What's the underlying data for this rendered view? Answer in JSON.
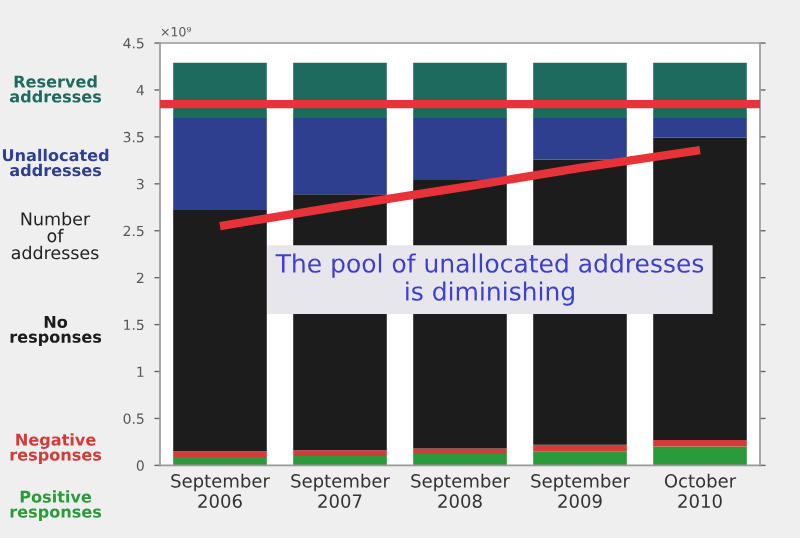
{
  "chart_data": {
    "type": "bar",
    "stacked": true,
    "ylabel": "Number of addresses",
    "categories": [
      "September\n2006",
      "September\n2007",
      "September\n2008",
      "September\n2009",
      "October\n2010"
    ],
    "series": [
      {
        "name": "Positive responses",
        "color": "#2a9a3a",
        "values": [
          0.09,
          0.1,
          0.12,
          0.15,
          0.2
        ]
      },
      {
        "name": "Negative responses",
        "color": "#d43a3a",
        "values": [
          0.06,
          0.06,
          0.06,
          0.07,
          0.07
        ]
      },
      {
        "name": "No responses",
        "color": "#1c1c1c",
        "values": [
          2.57,
          2.73,
          2.86,
          3.04,
          3.22
        ]
      },
      {
        "name": "Unallocated addresses",
        "color": "#2e3f8f",
        "values": [
          0.98,
          0.81,
          0.66,
          0.44,
          0.21
        ]
      },
      {
        "name": "Reserved addresses",
        "color": "#1e6a5e",
        "values": [
          0.59,
          0.59,
          0.59,
          0.59,
          0.59
        ]
      },
      {
        "type": "line",
        "color": "#e8323a",
        "values": [
          2.55,
          2.76,
          2.96,
          3.17,
          3.36
        ]
      }
    ],
    "ref_lines": [
      {
        "axis": "y",
        "value": 3.85,
        "label": null,
        "color": "#e8323a"
      }
    ],
    "ylim": [
      0,
      4.5
    ],
    "yticks": [
      0,
      0.5,
      1,
      1.5,
      2,
      2.5,
      3,
      3.5,
      4,
      4.5
    ],
    "annotations": [
      "×10⁹",
      "The pool of unallocated addresses\nis diminishing"
    ],
    "grid": false,
    "legend": false
  }
}
